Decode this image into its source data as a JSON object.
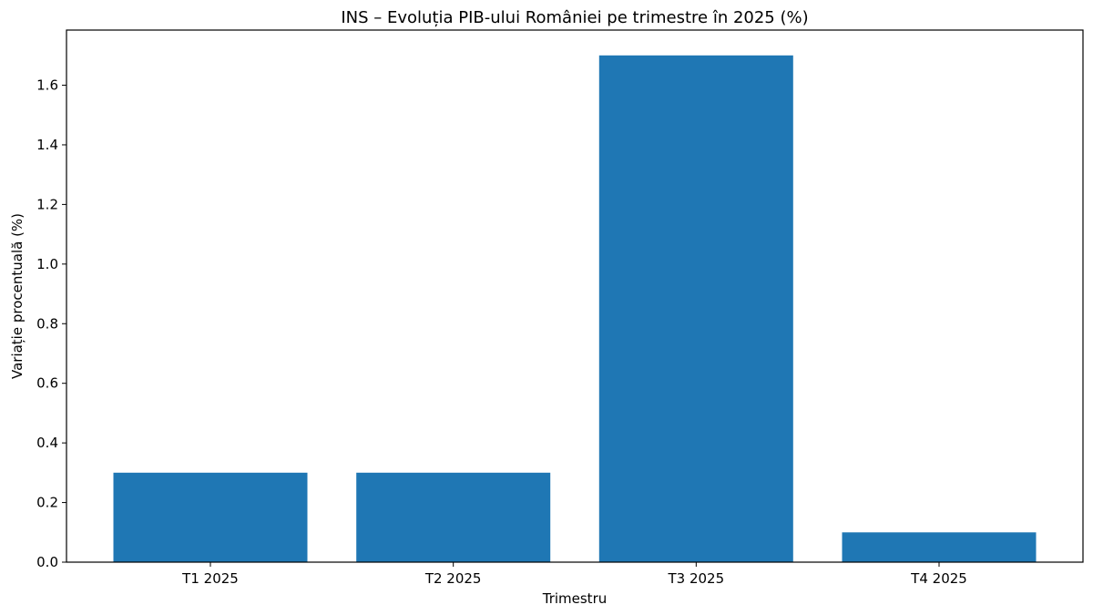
{
  "chart_data": {
    "type": "bar",
    "title": "INS – Evoluția PIB-ului României pe trimestre în 2025 (%)",
    "xlabel": "Trimestru",
    "ylabel": "Variație procentuală (%)",
    "categories": [
      "T1 2025",
      "T2 2025",
      "T3 2025",
      "T4 2025"
    ],
    "values": [
      0.3,
      0.3,
      1.7,
      0.1
    ],
    "ylim": [
      0,
      1.785
    ],
    "yticks": [
      0.0,
      0.2,
      0.4,
      0.6,
      0.8,
      1.0,
      1.2,
      1.4,
      1.6
    ],
    "ytick_labels": [
      "0.0",
      "0.2",
      "0.4",
      "0.6",
      "0.8",
      "1.0",
      "1.2",
      "1.4",
      "1.6"
    ],
    "bar_color": "#1f77b4",
    "grid": false,
    "legend": "none"
  }
}
